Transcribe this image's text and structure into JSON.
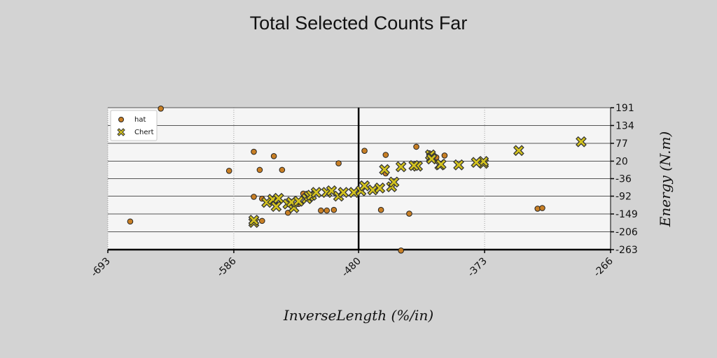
{
  "chart_data": {
    "type": "scatter",
    "title": "Total Selected Counts Far",
    "xlabel": "InverseLength (%/in)",
    "ylabel": "Energy (N.m)",
    "xlim": [
      -693,
      -266
    ],
    "ylim": [
      -263,
      191
    ],
    "xticks": [
      -693,
      -586,
      -480,
      -373,
      -266
    ],
    "yticks": [
      -263,
      -206,
      -149,
      -92,
      -36,
      20,
      77,
      134,
      191
    ],
    "grid": "x-dotted, y-solid",
    "legend_position": "top-left",
    "reference_line_x": -480,
    "series": [
      {
        "name": "hat",
        "marker": "circle",
        "color": "#c87f25",
        "points": [
          [
            -674,
            -173
          ],
          [
            -648,
            188
          ],
          [
            -590,
            -11
          ],
          [
            -569,
            -94
          ],
          [
            -569,
            50
          ],
          [
            -564,
            -8
          ],
          [
            -562,
            -171
          ],
          [
            -562,
            -100
          ],
          [
            -552,
            36
          ],
          [
            -545,
            -8
          ],
          [
            -540,
            -145
          ],
          [
            -531,
            -117
          ],
          [
            -527,
            -84
          ],
          [
            -512,
            -138
          ],
          [
            -507,
            -138
          ],
          [
            -501,
            -136
          ],
          [
            -497,
            13
          ],
          [
            -475,
            53
          ],
          [
            -461,
            -136
          ],
          [
            -457,
            40
          ],
          [
            -457,
            -19
          ],
          [
            -444,
            -266
          ],
          [
            -437,
            -148
          ],
          [
            -431,
            66
          ],
          [
            -420,
            45
          ],
          [
            -414,
            32
          ],
          [
            -407,
            38
          ],
          [
            -328,
            -132
          ],
          [
            -324,
            -130
          ]
        ]
      },
      {
        "name": "Chert",
        "marker": "x",
        "color": "#d4c31e",
        "points": [
          [
            -569,
            -176
          ],
          [
            -569,
            -169
          ],
          [
            -535,
            -129
          ],
          [
            -558,
            -112
          ],
          [
            -553,
            -102
          ],
          [
            -550,
            -125
          ],
          [
            -548,
            -99
          ],
          [
            -540,
            -117
          ],
          [
            -537,
            -111
          ],
          [
            -531,
            -108
          ],
          [
            -524,
            -100
          ],
          [
            -522,
            -92
          ],
          [
            -520,
            -89
          ],
          [
            -516,
            -80
          ],
          [
            -507,
            -80
          ],
          [
            -503,
            -75
          ],
          [
            -497,
            -92
          ],
          [
            -493,
            -80
          ],
          [
            -484,
            -80
          ],
          [
            -478,
            -75
          ],
          [
            -468,
            -72
          ],
          [
            -462,
            -66
          ],
          [
            -452,
            -62
          ],
          [
            -450,
            -47
          ],
          [
            -444,
            2
          ],
          [
            -430,
            4
          ],
          [
            -419,
            40
          ],
          [
            -418,
            31
          ],
          [
            -418,
            27
          ],
          [
            -411,
            8
          ],
          [
            -410,
            10
          ],
          [
            -395,
            8
          ],
          [
            -374,
            13
          ],
          [
            -374,
            19
          ],
          [
            -344,
            54
          ],
          [
            -291,
            82
          ],
          [
            -475,
            -59
          ],
          [
            -458,
            -7
          ],
          [
            -433,
            6
          ],
          [
            -380,
            16
          ]
        ]
      }
    ]
  },
  "legend": {
    "hat": "hat",
    "Chert": "Chert"
  }
}
